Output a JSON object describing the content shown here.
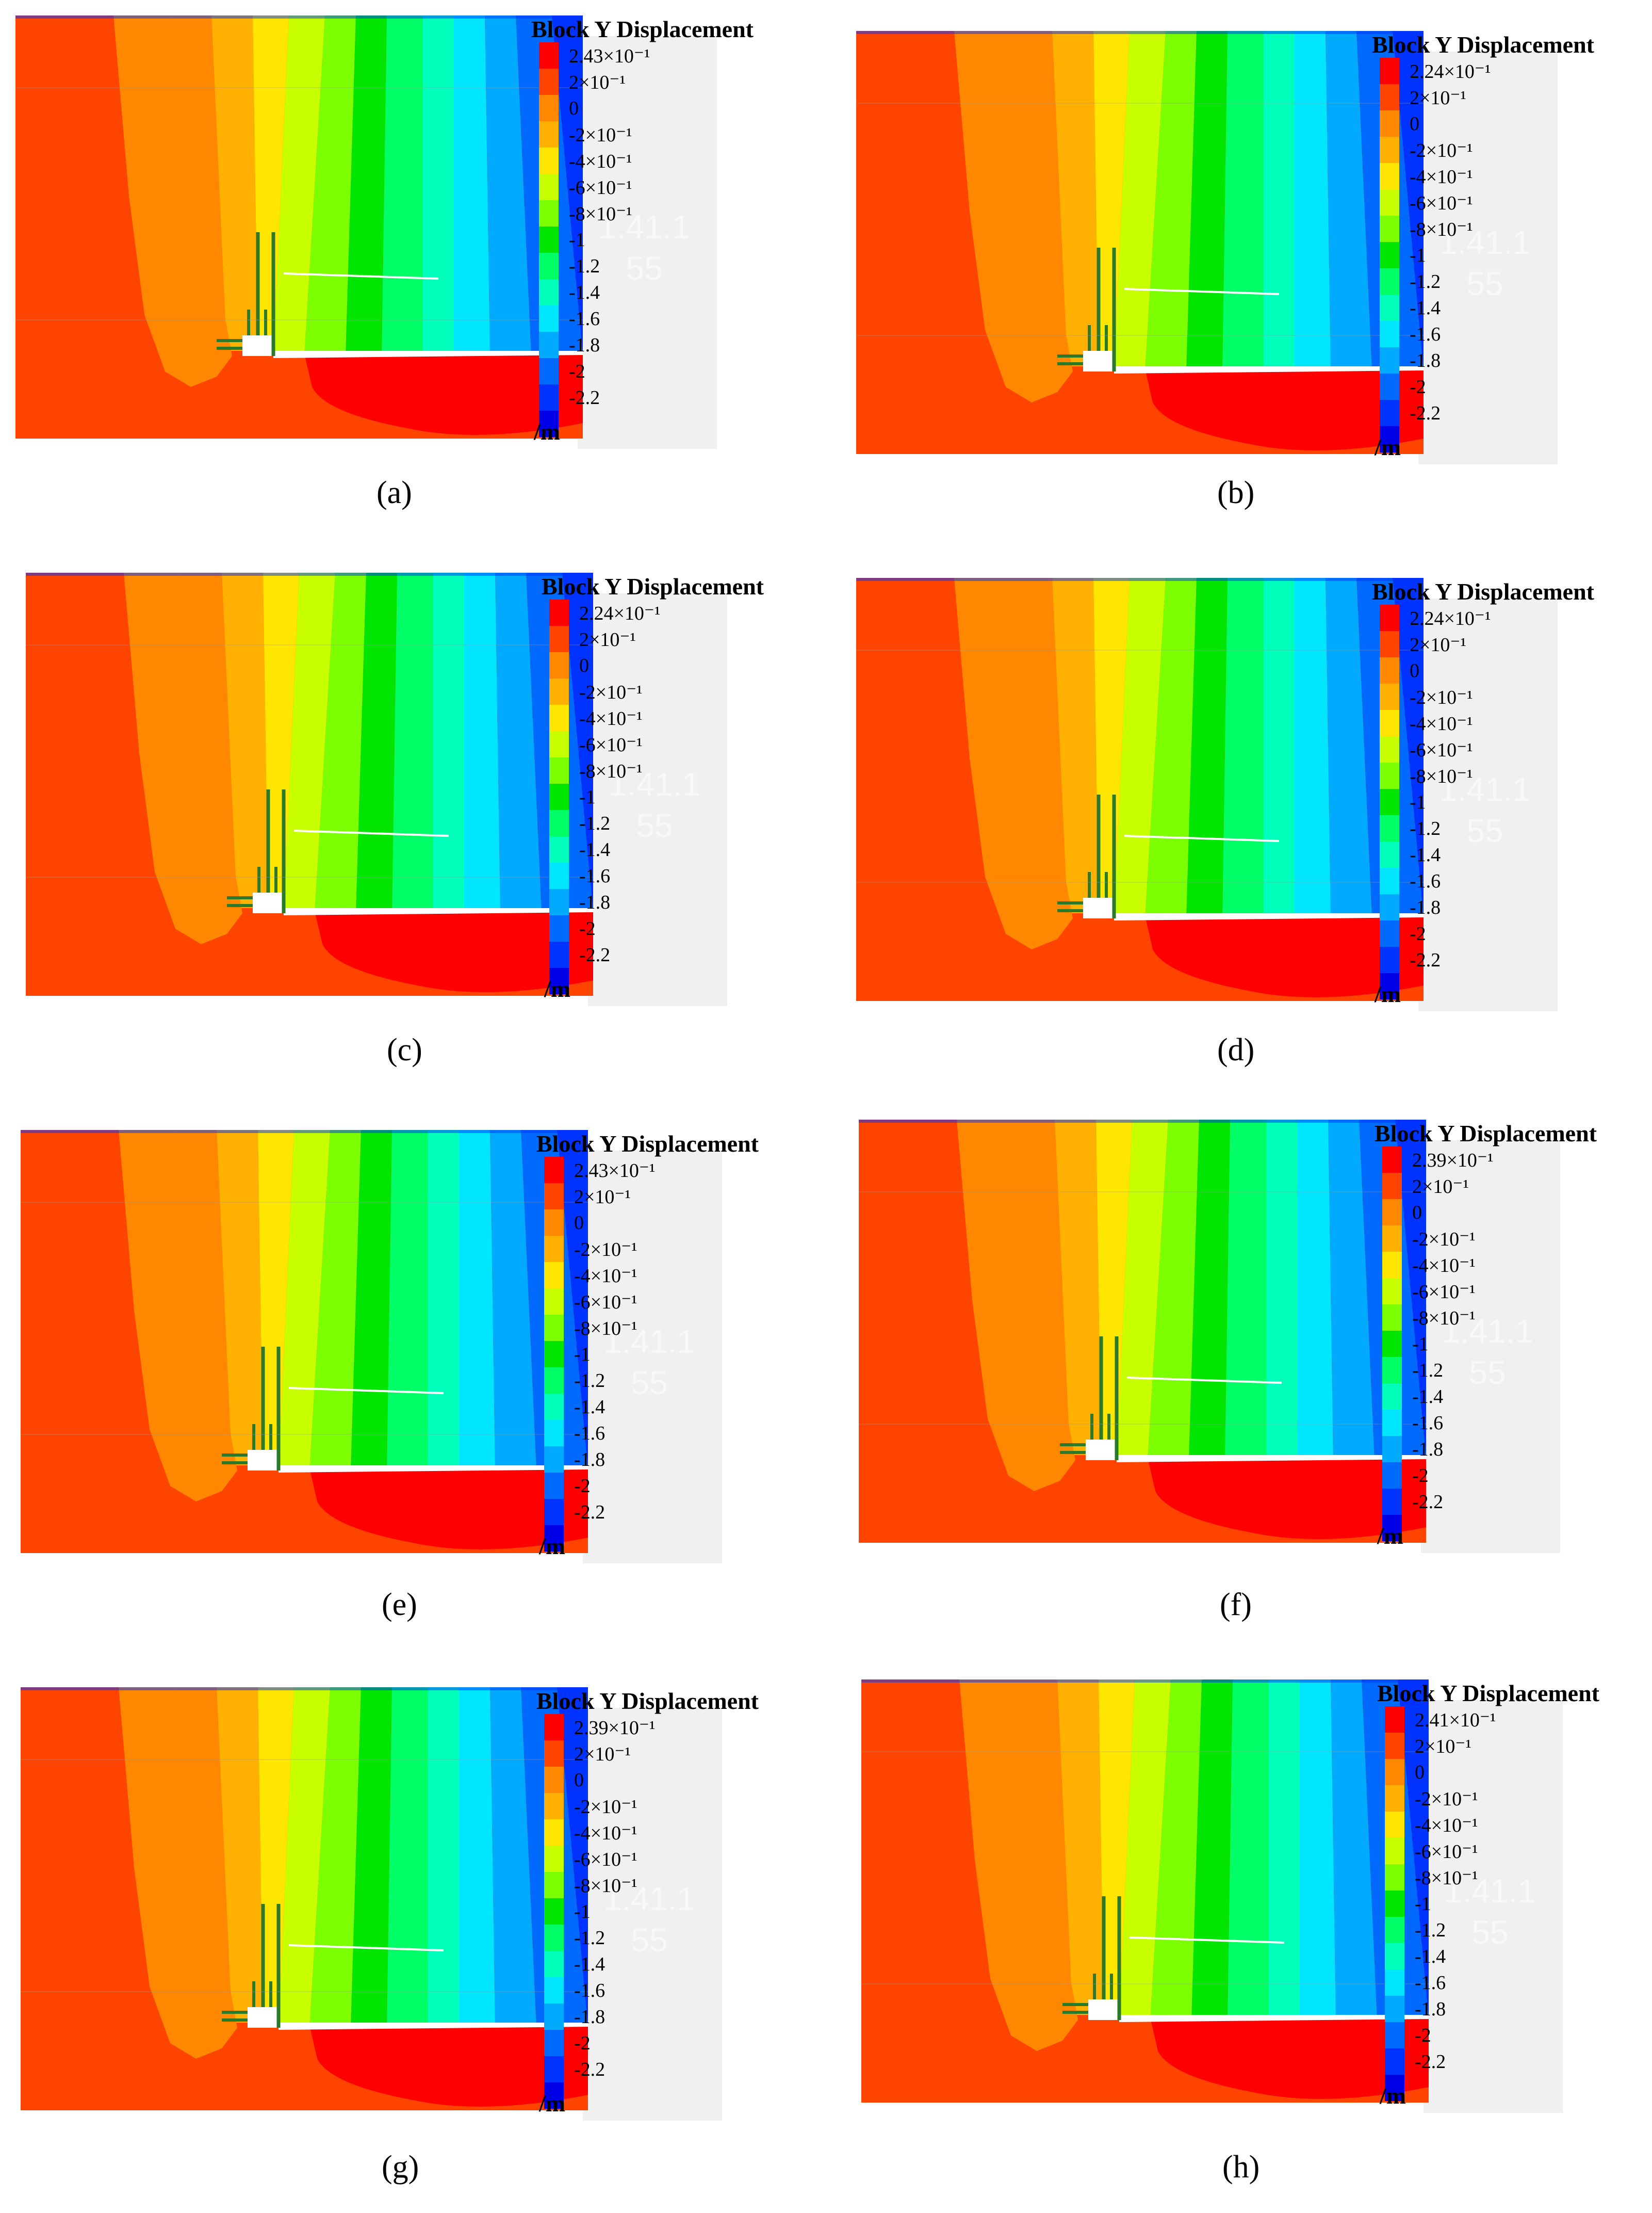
{
  "figure": {
    "legend_title": "Block Y Displacement",
    "unit": "/m",
    "watermark": [
      "1.41.1",
      "55"
    ],
    "colors": [
      "#ff0000",
      "#ff4400",
      "#ff8800",
      "#ffb000",
      "#ffe600",
      "#c8ff00",
      "#7cff00",
      "#00e600",
      "#00ff66",
      "#00ffbb",
      "#00e6ff",
      "#00aaff",
      "#006aff",
      "#0033ff",
      "#0000e6"
    ],
    "shared_ticks": [
      "2×10⁻¹",
      "0",
      "-2×10⁻¹",
      "-4×10⁻¹",
      "-6×10⁻¹",
      "-8×10⁻¹",
      "-1",
      "-1.2",
      "-1.4",
      "-1.6",
      "-1.8",
      "-2",
      "-2.2"
    ]
  },
  "panels": [
    {
      "id": "a",
      "caption": "(a)",
      "max_label": "2.43×10⁻¹"
    },
    {
      "id": "b",
      "caption": "(b)",
      "max_label": "2.24×10⁻¹"
    },
    {
      "id": "c",
      "caption": "(c)",
      "max_label": "2.24×10⁻¹"
    },
    {
      "id": "d",
      "caption": "(d)",
      "max_label": "2.24×10⁻¹"
    },
    {
      "id": "e",
      "caption": "(e)",
      "max_label": "2.43×10⁻¹"
    },
    {
      "id": "f",
      "caption": "(f)",
      "max_label": "2.39×10⁻¹"
    },
    {
      "id": "g",
      "caption": "(g)",
      "max_label": "2.39×10⁻¹"
    },
    {
      "id": "h",
      "caption": "(h)",
      "max_label": "2.41×10⁻¹"
    }
  ]
}
